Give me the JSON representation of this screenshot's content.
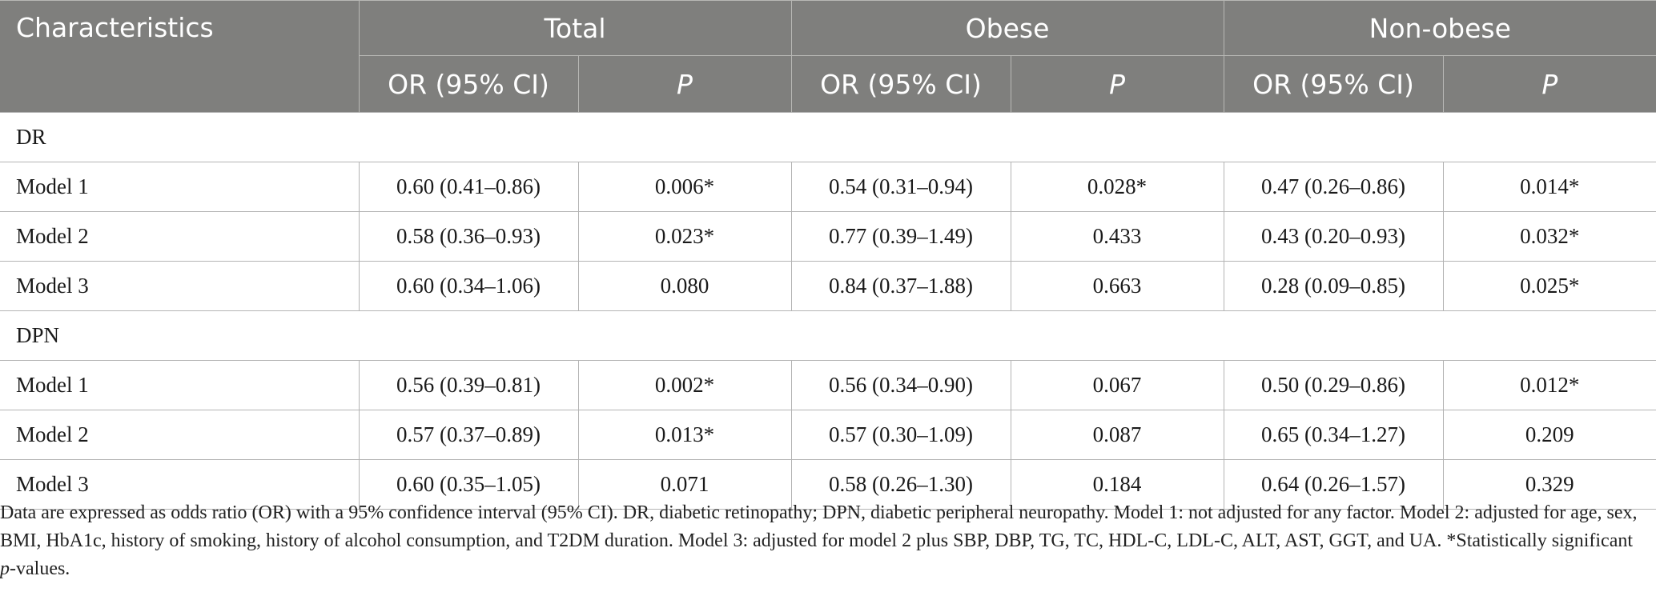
{
  "header": {
    "characteristics": "Characteristics",
    "groups": [
      "Total",
      "Obese",
      "Non-obese"
    ],
    "or_label": "OR (95% CI)",
    "p_label": "P"
  },
  "sections": [
    {
      "name": "DR",
      "rows": [
        {
          "model": "Model 1",
          "cells": [
            "0.60 (0.41–0.86)",
            "0.006*",
            "0.54 (0.31–0.94)",
            "0.028*",
            "0.47 (0.26–0.86)",
            "0.014*"
          ]
        },
        {
          "model": "Model 2",
          "cells": [
            "0.58 (0.36–0.93)",
            "0.023*",
            "0.77 (0.39–1.49)",
            "0.433",
            "0.43 (0.20–0.93)",
            "0.032*"
          ]
        },
        {
          "model": "Model 3",
          "cells": [
            "0.60 (0.34–1.06)",
            "0.080",
            "0.84 (0.37–1.88)",
            "0.663",
            "0.28 (0.09–0.85)",
            "0.025*"
          ]
        }
      ]
    },
    {
      "name": "DPN",
      "rows": [
        {
          "model": "Model 1",
          "cells": [
            "0.56 (0.39–0.81)",
            "0.002*",
            "0.56 (0.34–0.90)",
            "0.067",
            "0.50 (0.29–0.86)",
            "0.012*"
          ]
        },
        {
          "model": "Model 2",
          "cells": [
            "0.57 (0.37–0.89)",
            "0.013*",
            "0.57 (0.30–1.09)",
            "0.087",
            "0.65 (0.34–1.27)",
            "0.209"
          ]
        },
        {
          "model": "Model 3",
          "cells": [
            "0.60 (0.35–1.05)",
            "0.071",
            "0.58 (0.26–1.30)",
            "0.184",
            "0.64 (0.26–1.57)",
            "0.329"
          ]
        }
      ]
    }
  ],
  "footnote": {
    "part1": "Data are expressed as odds ratio (OR) with a 95% confidence interval (95% CI). DR, diabetic retinopathy; DPN, diabetic peripheral neuropathy. Model 1: not adjusted for any factor. Model 2: adjusted for age, sex, BMI, HbA1c, history of smoking, history of alcohol consumption, and T2DM duration. Model 3: adjusted for model 2 plus SBP, DBP, TG, TC, HDL-C, LDL-C, ALT, AST, GGT, and UA. *Statistically significant ",
    "p_word": "p",
    "part2": "-values."
  }
}
